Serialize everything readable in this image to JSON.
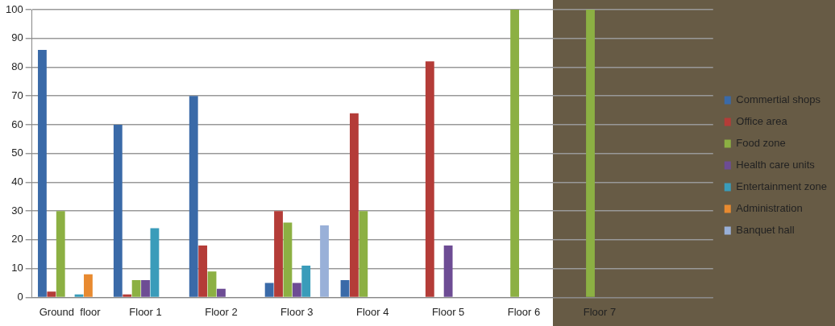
{
  "chart_data": {
    "type": "bar",
    "categories": [
      "Ground  floor",
      "Floor 1",
      "Floor 2",
      "Floor 3",
      "Floor 4",
      "Floor 5",
      "Floor 6",
      "Floor 7",
      null
    ],
    "series": [
      {
        "name": "Commertial shops",
        "color": "#3a6aa8",
        "values": [
          86,
          60,
          70,
          5,
          6,
          0,
          0,
          0,
          null
        ]
      },
      {
        "name": "Office area",
        "color": "#b43c38",
        "values": [
          2,
          1,
          18,
          30,
          64,
          82,
          0,
          0,
          null
        ]
      },
      {
        "name": "Food zone",
        "color": "#8cb043",
        "values": [
          30,
          6,
          9,
          26,
          30,
          0,
          100,
          100,
          null
        ]
      },
      {
        "name": "Health care units",
        "color": "#6d4c94",
        "values": [
          0,
          6,
          3,
          5,
          0,
          18,
          0,
          0,
          null
        ]
      },
      {
        "name": "Entertainment zone",
        "color": "#3a9cba",
        "values": [
          1,
          24,
          0,
          11,
          0,
          0,
          0,
          0,
          null
        ]
      },
      {
        "name": "Administration",
        "color": "#e88a30",
        "values": [
          8,
          0,
          0,
          0,
          0,
          0,
          0,
          0,
          null
        ]
      },
      {
        "name": "Banquet hall",
        "color": "#99b0d8",
        "values": [
          0,
          0,
          0,
          25,
          0,
          0,
          0,
          0,
          null
        ]
      }
    ],
    "ylim": [
      0,
      100
    ],
    "yticks": [
      0,
      10,
      20,
      30,
      40,
      50,
      60,
      70,
      80,
      90,
      100
    ],
    "grid": "y",
    "legend": "right"
  }
}
